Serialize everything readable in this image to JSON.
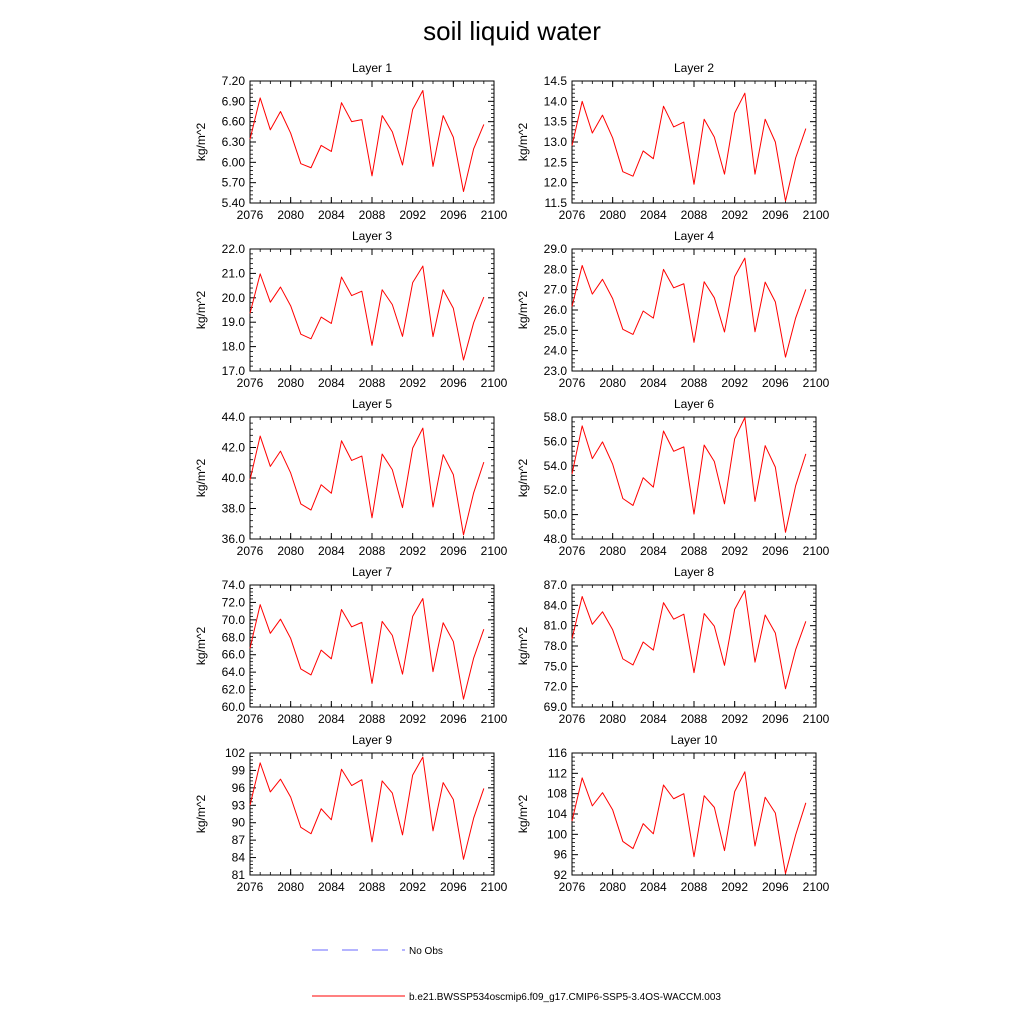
{
  "figure": {
    "title": "soil liquid water",
    "series_color": "#ff0000",
    "noobs_color": "#6a6aff",
    "legend": {
      "no_obs_label": "No Obs",
      "model_label": "b.e21.BWSSP534oscmip6.f09_g17.CMIP6-SSP5-3.4OS-WACCM.003"
    }
  },
  "chart_data": [
    {
      "type": "line",
      "title": "Layer 1",
      "xlabel": "",
      "ylabel": "kg/m^2",
      "xlim": [
        2076,
        2100
      ],
      "xticks": [
        "2076",
        "2080",
        "2084",
        "2088",
        "2092",
        "2096",
        "2100"
      ],
      "ylim": [
        5.4,
        7.2
      ],
      "yticks": [
        "5.40",
        "5.70",
        "6.00",
        "6.30",
        "6.60",
        "6.90",
        "7.20"
      ],
      "x": [
        2076,
        2077,
        2078,
        2079,
        2080,
        2081,
        2082,
        2083,
        2084,
        2085,
        2086,
        2087,
        2088,
        2089,
        2090,
        2091,
        2092,
        2093,
        2094,
        2095,
        2096,
        2097,
        2098,
        2099
      ],
      "series": [
        {
          "name": "b.e21.BWSSP534oscmip6.f09_g17.CMIP6-SSP5-3.4OS-WACCM.003",
          "values": [
            6.34,
            6.95,
            6.48,
            6.75,
            6.43,
            5.98,
            5.92,
            6.25,
            6.16,
            6.88,
            6.6,
            6.63,
            5.8,
            6.69,
            6.45,
            5.96,
            6.78,
            7.06,
            5.94,
            6.69,
            6.37,
            5.57,
            6.2,
            6.56
          ]
        }
      ]
    },
    {
      "type": "line",
      "title": "Layer 2",
      "xlabel": "",
      "ylabel": "kg/m^2",
      "xlim": [
        2076,
        2100
      ],
      "xticks": [
        "2076",
        "2080",
        "2084",
        "2088",
        "2092",
        "2096",
        "2100"
      ],
      "ylim": [
        11.5,
        14.5
      ],
      "yticks": [
        "11.5",
        "12.0",
        "12.5",
        "13.0",
        "13.5",
        "14.0",
        "14.5"
      ],
      "x": [
        2076,
        2077,
        2078,
        2079,
        2080,
        2081,
        2082,
        2083,
        2084,
        2085,
        2086,
        2087,
        2088,
        2089,
        2090,
        2091,
        2092,
        2093,
        2094,
        2095,
        2096,
        2097,
        2098,
        2099
      ],
      "series": [
        {
          "name": "b.e21.BWSSP534oscmip6.f09_g17.CMIP6-SSP5-3.4OS-WACCM.003",
          "values": [
            12.91,
            14.0,
            13.22,
            13.66,
            13.1,
            12.27,
            12.16,
            12.78,
            12.59,
            13.88,
            13.37,
            13.49,
            11.96,
            13.56,
            13.12,
            12.21,
            13.71,
            14.2,
            12.21,
            13.56,
            13.0,
            11.55,
            12.61,
            13.33
          ]
        }
      ]
    },
    {
      "type": "line",
      "title": "Layer 3",
      "xlabel": "",
      "ylabel": "kg/m^2",
      "xlim": [
        2076,
        2100
      ],
      "xticks": [
        "2076",
        "2080",
        "2084",
        "2088",
        "2092",
        "2096",
        "2100"
      ],
      "ylim": [
        17.0,
        22.0
      ],
      "yticks": [
        "17.0",
        "18.0",
        "19.0",
        "20.0",
        "21.0",
        "22.0"
      ],
      "x": [
        2076,
        2077,
        2078,
        2079,
        2080,
        2081,
        2082,
        2083,
        2084,
        2085,
        2086,
        2087,
        2088,
        2089,
        2090,
        2091,
        2092,
        2093,
        2094,
        2095,
        2096,
        2097,
        2098,
        2099
      ],
      "series": [
        {
          "name": "b.e21.BWSSP534oscmip6.f09_g17.CMIP6-SSP5-3.4OS-WACCM.003",
          "values": [
            19.36,
            20.98,
            19.82,
            20.44,
            19.67,
            18.51,
            18.32,
            19.21,
            18.95,
            20.85,
            20.09,
            20.27,
            18.05,
            20.33,
            19.72,
            18.42,
            20.62,
            21.3,
            18.41,
            20.33,
            19.57,
            17.45,
            18.98,
            20.03
          ]
        }
      ]
    },
    {
      "type": "line",
      "title": "Layer 4",
      "xlabel": "",
      "ylabel": "kg/m^2",
      "xlim": [
        2076,
        2100
      ],
      "xticks": [
        "2076",
        "2080",
        "2084",
        "2088",
        "2092",
        "2096",
        "2100"
      ],
      "ylim": [
        23.0,
        29.0
      ],
      "yticks": [
        "23.0",
        "24.0",
        "25.0",
        "26.0",
        "27.0",
        "28.0",
        "29.0"
      ],
      "x": [
        2076,
        2077,
        2078,
        2079,
        2080,
        2081,
        2082,
        2083,
        2084,
        2085,
        2086,
        2087,
        2088,
        2089,
        2090,
        2091,
        2092,
        2093,
        2094,
        2095,
        2096,
        2097,
        2098,
        2099
      ],
      "series": [
        {
          "name": "b.e21.BWSSP534oscmip6.f09_g17.CMIP6-SSP5-3.4OS-WACCM.003",
          "values": [
            26.17,
            28.19,
            26.78,
            27.51,
            26.56,
            25.05,
            24.8,
            25.95,
            25.6,
            28.0,
            27.09,
            27.29,
            24.41,
            27.39,
            26.6,
            24.92,
            27.64,
            28.55,
            24.93,
            27.37,
            26.4,
            23.68,
            25.61,
            27.01
          ]
        }
      ]
    },
    {
      "type": "line",
      "title": "Layer 5",
      "xlabel": "",
      "ylabel": "kg/m^2",
      "xlim": [
        2076,
        2100
      ],
      "xticks": [
        "2076",
        "2080",
        "2084",
        "2088",
        "2092",
        "2096",
        "2100"
      ],
      "ylim": [
        36.0,
        44.0
      ],
      "yticks": [
        "36.0",
        "38.0",
        "40.0",
        "42.0",
        "44.0"
      ],
      "x": [
        2076,
        2077,
        2078,
        2079,
        2080,
        2081,
        2082,
        2083,
        2084,
        2085,
        2086,
        2087,
        2088,
        2089,
        2090,
        2091,
        2092,
        2093,
        2094,
        2095,
        2096,
        2097,
        2098,
        2099
      ],
      "series": [
        {
          "name": "b.e21.BWSSP534oscmip6.f09_g17.CMIP6-SSP5-3.4OS-WACCM.003",
          "values": [
            39.87,
            42.75,
            40.76,
            41.76,
            40.33,
            38.3,
            37.9,
            39.56,
            39.0,
            42.44,
            41.15,
            41.44,
            37.39,
            41.57,
            40.54,
            38.06,
            41.96,
            43.27,
            38.1,
            41.53,
            40.22,
            36.27,
            39.03,
            41.04
          ]
        }
      ]
    },
    {
      "type": "line",
      "title": "Layer 6",
      "xlabel": "",
      "ylabel": "kg/m^2",
      "xlim": [
        2076,
        2100
      ],
      "xticks": [
        "2076",
        "2080",
        "2084",
        "2088",
        "2092",
        "2096",
        "2100"
      ],
      "ylim": [
        48.0,
        58.0
      ],
      "yticks": [
        "48.0",
        "50.0",
        "52.0",
        "54.0",
        "56.0",
        "58.0"
      ],
      "x": [
        2076,
        2077,
        2078,
        2079,
        2080,
        2081,
        2082,
        2083,
        2084,
        2085,
        2086,
        2087,
        2088,
        2089,
        2090,
        2091,
        2092,
        2093,
        2094,
        2095,
        2096,
        2097,
        2098,
        2099
      ],
      "series": [
        {
          "name": "b.e21.BWSSP534oscmip6.f09_g17.CMIP6-SSP5-3.4OS-WACCM.003",
          "values": [
            53.32,
            57.27,
            54.59,
            55.96,
            54.13,
            51.32,
            50.75,
            53.02,
            52.25,
            56.85,
            55.19,
            55.55,
            50.04,
            55.7,
            54.35,
            50.88,
            56.21,
            57.95,
            51.08,
            55.65,
            53.89,
            48.55,
            52.37,
            54.98
          ]
        }
      ]
    },
    {
      "type": "line",
      "title": "Layer 7",
      "xlabel": "",
      "ylabel": "kg/m^2",
      "xlim": [
        2076,
        2100
      ],
      "xticks": [
        "2076",
        "2080",
        "2084",
        "2088",
        "2092",
        "2096",
        "2100"
      ],
      "ylim": [
        60.0,
        74.0
      ],
      "yticks": [
        "60.0",
        "62.0",
        "64.0",
        "66.0",
        "68.0",
        "70.0",
        "72.0",
        "74.0"
      ],
      "x": [
        2076,
        2077,
        2078,
        2079,
        2080,
        2081,
        2082,
        2083,
        2084,
        2085,
        2086,
        2087,
        2088,
        2089,
        2090,
        2091,
        2092,
        2093,
        2094,
        2095,
        2096,
        2097,
        2098,
        2099
      ],
      "series": [
        {
          "name": "b.e21.BWSSP534oscmip6.f09_g17.CMIP6-SSP5-3.4OS-WACCM.003",
          "values": [
            66.73,
            71.75,
            68.46,
            70.08,
            67.87,
            64.37,
            63.68,
            66.53,
            65.53,
            71.19,
            69.2,
            69.71,
            62.71,
            69.82,
            68.22,
            63.77,
            70.4,
            72.45,
            64.06,
            69.67,
            67.51,
            60.9,
            65.62,
            68.93
          ]
        }
      ]
    },
    {
      "type": "line",
      "title": "Layer 8",
      "xlabel": "",
      "ylabel": "kg/m^2",
      "xlim": [
        2076,
        2100
      ],
      "xticks": [
        "2076",
        "2080",
        "2084",
        "2088",
        "2092",
        "2096",
        "2100"
      ],
      "ylim": [
        69.0,
        87.0
      ],
      "yticks": [
        "69.0",
        "72.0",
        "75.0",
        "78.0",
        "81.0",
        "84.0",
        "87.0"
      ],
      "x": [
        2076,
        2077,
        2078,
        2079,
        2080,
        2081,
        2082,
        2083,
        2084,
        2085,
        2086,
        2087,
        2088,
        2089,
        2090,
        2091,
        2092,
        2093,
        2094,
        2095,
        2096,
        2097,
        2098,
        2099
      ],
      "series": [
        {
          "name": "b.e21.BWSSP534oscmip6.f09_g17.CMIP6-SSP5-3.4OS-WACCM.003",
          "values": [
            79.07,
            85.3,
            81.2,
            83.05,
            80.39,
            76.1,
            75.2,
            78.59,
            77.39,
            84.39,
            81.96,
            82.7,
            74.07,
            82.79,
            80.92,
            75.15,
            83.4,
            86.18,
            75.62,
            82.57,
            79.92,
            71.69,
            77.47,
            81.64
          ]
        }
      ]
    },
    {
      "type": "line",
      "title": "Layer 9",
      "xlabel": "",
      "ylabel": "kg/m^2",
      "xlim": [
        2076,
        2100
      ],
      "xticks": [
        "2076",
        "2080",
        "2084",
        "2088",
        "2092",
        "2096",
        "2100"
      ],
      "ylim": [
        81,
        102
      ],
      "yticks": [
        "81",
        "84",
        "87",
        "90",
        "93",
        "96",
        "99",
        "102"
      ],
      "x": [
        2076,
        2077,
        2078,
        2079,
        2080,
        2081,
        2082,
        2083,
        2084,
        2085,
        2086,
        2087,
        2088,
        2089,
        2090,
        2091,
        2092,
        2093,
        2094,
        2095,
        2096,
        2097,
        2098,
        2099
      ],
      "series": [
        {
          "name": "b.e21.BWSSP534oscmip6.f09_g17.CMIP6-SSP5-3.4OS-WACCM.003",
          "values": [
            93.0,
            100.3,
            95.3,
            97.5,
            94.4,
            89.2,
            88.1,
            92.4,
            90.5,
            99.2,
            96.4,
            97.4,
            86.7,
            97.2,
            95.1,
            87.9,
            98.2,
            101.3,
            88.6,
            96.9,
            94.0,
            83.7,
            90.8,
            95.9
          ]
        }
      ]
    },
    {
      "type": "line",
      "title": "Layer 10",
      "xlabel": "",
      "ylabel": "kg/m^2",
      "xlim": [
        2076,
        2100
      ],
      "xticks": [
        "2076",
        "2080",
        "2084",
        "2088",
        "2092",
        "2096",
        "2100"
      ],
      "ylim": [
        92,
        116
      ],
      "yticks": [
        "92",
        "96",
        "100",
        "104",
        "108",
        "112",
        "116"
      ],
      "x": [
        2076,
        2077,
        2078,
        2079,
        2080,
        2081,
        2082,
        2083,
        2084,
        2085,
        2086,
        2087,
        2088,
        2089,
        2090,
        2091,
        2092,
        2093,
        2094,
        2095,
        2096,
        2097,
        2098,
        2099
      ],
      "series": [
        {
          "name": "b.e21.BWSSP534oscmip6.f09_g17.CMIP6-SSP5-3.4OS-WACCM.003",
          "values": [
            102.6,
            111.1,
            105.6,
            108.2,
            104.8,
            98.6,
            97.2,
            102.1,
            100.1,
            109.7,
            107.0,
            108.0,
            95.6,
            107.6,
            105.3,
            96.8,
            108.4,
            112.3,
            97.7,
            107.3,
            104.2,
            92.3,
            99.9,
            106.2
          ]
        }
      ]
    }
  ]
}
